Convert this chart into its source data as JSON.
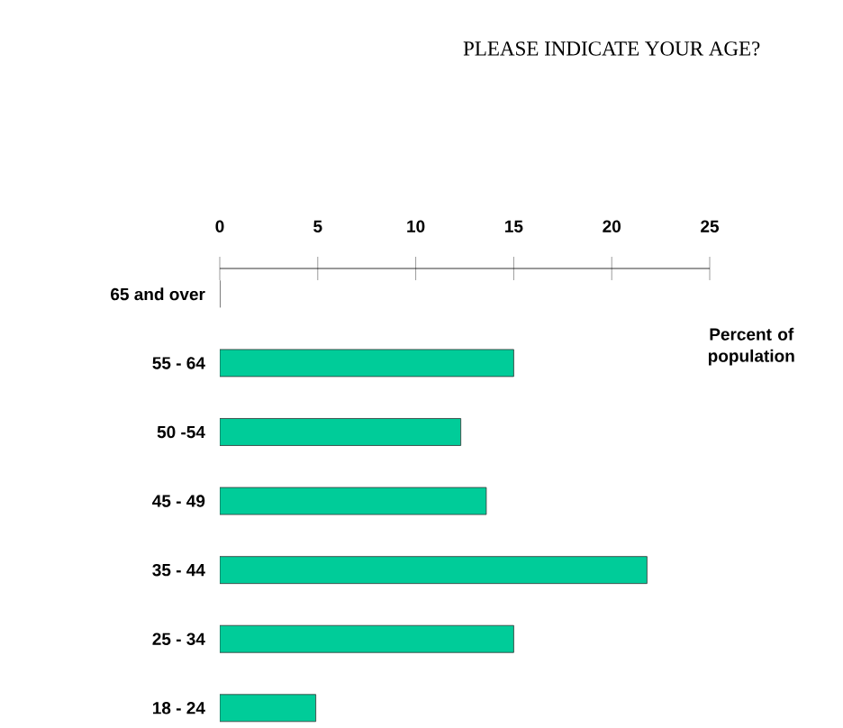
{
  "chart_data": {
    "type": "bar",
    "orientation": "horizontal",
    "title": "PLEASE INDICATE YOUR AGE?",
    "xlabel": "Percent of population",
    "categories": [
      "65 and over",
      "55 - 64",
      "50 -54",
      "45 - 49",
      "35 - 44",
      "25 - 34",
      "18 - 24"
    ],
    "values": [
      0,
      15,
      12.3,
      13.6,
      21.8,
      15,
      4.9
    ],
    "color": "#00cc99",
    "xlim": [
      0,
      25
    ],
    "xticks": [
      0,
      5,
      10,
      15,
      20,
      25
    ],
    "grid": false
  }
}
